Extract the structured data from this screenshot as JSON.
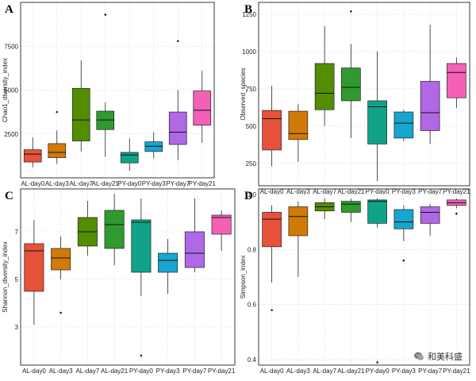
{
  "watermark": {
    "text": "和美科盛"
  },
  "chart_data": [
    {
      "type": "box",
      "panel": "A",
      "ylabel": "Chao1_diversity_index",
      "ylim": [
        0,
        10000
      ],
      "yticks": [
        2500,
        5000,
        7500
      ],
      "categories": [
        "AL-day0",
        "AL-day3",
        "AL-day7",
        "AL-day21",
        "PY-day0",
        "PY-day3",
        "PY-day7",
        "PY-day21"
      ],
      "colors": [
        "#e8513a",
        "#d27a08",
        "#538d02",
        "#2f9a2f",
        "#10a389",
        "#16a6cf",
        "#b068e6",
        "#f460b5"
      ],
      "grid": true,
      "boxes": [
        {
          "min": 600,
          "q1": 900,
          "median": 1350,
          "q3": 1600,
          "max": 2300,
          "outliers": []
        },
        {
          "min": 800,
          "q1": 1150,
          "median": 1450,
          "q3": 1950,
          "max": 2700,
          "outliers": [
            3750
          ]
        },
        {
          "min": 1500,
          "q1": 2100,
          "median": 3300,
          "q3": 5100,
          "max": 6700,
          "outliers": []
        },
        {
          "min": 1200,
          "q1": 2750,
          "median": 3300,
          "q3": 3800,
          "max": 4300,
          "outliers": [
            9300
          ]
        },
        {
          "min": 400,
          "q1": 850,
          "median": 1300,
          "q3": 1450,
          "max": 2250,
          "outliers": []
        },
        {
          "min": 1100,
          "q1": 1500,
          "median": 1800,
          "q3": 2050,
          "max": 2600,
          "outliers": []
        },
        {
          "min": 1000,
          "q1": 1900,
          "median": 2600,
          "q3": 3750,
          "max": 5000,
          "outliers": [
            7800
          ]
        },
        {
          "min": 2000,
          "q1": 3000,
          "median": 3850,
          "q3": 4950,
          "max": 6100,
          "outliers": []
        }
      ]
    },
    {
      "type": "box",
      "panel": "B",
      "ylabel": "Observed_species",
      "ylim": [
        100,
        1330
      ],
      "yticks": [
        250,
        500,
        750,
        1000,
        1250
      ],
      "categories": [
        "AL-day0",
        "AL-day3",
        "AL-day7",
        "AL-day21",
        "PY-day0",
        "PY-day3",
        "PY-day7",
        "PY-day21"
      ],
      "colors": [
        "#e8513a",
        "#d27a08",
        "#538d02",
        "#2f9a2f",
        "#10a389",
        "#16a6cf",
        "#b068e6",
        "#f460b5"
      ],
      "grid": true,
      "boxes": [
        {
          "min": 230,
          "q1": 340,
          "median": 550,
          "q3": 605,
          "max": 770,
          "outliers": []
        },
        {
          "min": 260,
          "q1": 410,
          "median": 450,
          "q3": 600,
          "max": 650,
          "outliers": []
        },
        {
          "min": 500,
          "q1": 610,
          "median": 720,
          "q3": 920,
          "max": 1170,
          "outliers": []
        },
        {
          "min": 420,
          "q1": 670,
          "median": 760,
          "q3": 890,
          "max": 1050,
          "outliers": [
            1270
          ]
        },
        {
          "min": 130,
          "q1": 380,
          "median": 630,
          "q3": 670,
          "max": 1000,
          "outliers": []
        },
        {
          "min": 400,
          "q1": 420,
          "median": 520,
          "q3": 595,
          "max": 610,
          "outliers": []
        },
        {
          "min": 380,
          "q1": 470,
          "median": 590,
          "q3": 800,
          "max": 1180,
          "outliers": []
        },
        {
          "min": 620,
          "q1": 690,
          "median": 860,
          "q3": 920,
          "max": 960,
          "outliers": []
        }
      ]
    },
    {
      "type": "box",
      "panel": "C",
      "ylabel": "Shannon_diversity_index",
      "ylim": [
        1.4,
        8.8
      ],
      "yticks": [
        3,
        5,
        7
      ],
      "categories": [
        "AL-day0",
        "AL-day3",
        "AL-day7",
        "AL-day21",
        "PY-day0",
        "PY-day3",
        "PY-day7",
        "PY-day21"
      ],
      "colors": [
        "#e8513a",
        "#d27a08",
        "#538d02",
        "#2f9a2f",
        "#10a389",
        "#16a6cf",
        "#b068e6",
        "#f460b5"
      ],
      "grid": true,
      "boxes": [
        {
          "min": 3.1,
          "q1": 4.5,
          "median": 6.2,
          "q3": 6.5,
          "max": 7.5,
          "outliers": []
        },
        {
          "min": 5.0,
          "q1": 5.4,
          "median": 5.9,
          "q3": 6.3,
          "max": 6.8,
          "outliers": [
            3.6
          ]
        },
        {
          "min": 6.0,
          "q1": 6.4,
          "median": 7.0,
          "q3": 7.6,
          "max": 8.3,
          "outliers": []
        },
        {
          "min": 5.6,
          "q1": 6.3,
          "median": 7.3,
          "q3": 7.9,
          "max": 8.6,
          "outliers": []
        },
        {
          "min": 4.3,
          "q1": 5.3,
          "median": 7.4,
          "q3": 7.5,
          "max": 8.4,
          "outliers": [
            1.8
          ]
        },
        {
          "min": 4.4,
          "q1": 5.3,
          "median": 5.8,
          "q3": 6.1,
          "max": 6.7,
          "outliers": []
        },
        {
          "min": 5.3,
          "q1": 5.5,
          "median": 6.1,
          "q3": 7.0,
          "max": 8.4,
          "outliers": []
        },
        {
          "min": 6.2,
          "q1": 6.9,
          "median": 7.6,
          "q3": 7.7,
          "max": 7.9,
          "outliers": []
        }
      ]
    },
    {
      "type": "box",
      "panel": "D",
      "ylabel": "Simpson_index",
      "ylim": [
        0.38,
        1.02
      ],
      "yticks": [
        0.4,
        0.6,
        0.8,
        1.0
      ],
      "categories": [
        "AL-day0",
        "AL-day3",
        "AL-day7",
        "AL-day21",
        "PY-day0",
        "PY-day3",
        "PY-day7",
        "PY-day21"
      ],
      "colors": [
        "#e8513a",
        "#d27a08",
        "#538d02",
        "#2f9a2f",
        "#10a389",
        "#16a6cf",
        "#b068e6",
        "#f460b5"
      ],
      "grid": true,
      "boxes": [
        {
          "min": 0.68,
          "q1": 0.81,
          "median": 0.91,
          "q3": 0.935,
          "max": 0.96,
          "outliers": [
            0.58
          ]
        },
        {
          "min": 0.7,
          "q1": 0.85,
          "median": 0.92,
          "q3": 0.955,
          "max": 0.975,
          "outliers": []
        },
        {
          "min": 0.91,
          "q1": 0.94,
          "median": 0.955,
          "q3": 0.97,
          "max": 0.985,
          "outliers": []
        },
        {
          "min": 0.9,
          "q1": 0.935,
          "median": 0.965,
          "q3": 0.975,
          "max": 0.985,
          "outliers": []
        },
        {
          "min": 0.88,
          "q1": 0.895,
          "median": 0.975,
          "q3": 0.98,
          "max": 0.985,
          "outliers": [
            0.39
          ]
        },
        {
          "min": 0.83,
          "q1": 0.875,
          "median": 0.9,
          "q3": 0.945,
          "max": 0.96,
          "outliers": [
            0.76
          ]
        },
        {
          "min": 0.85,
          "q1": 0.895,
          "median": 0.935,
          "q3": 0.955,
          "max": 0.965,
          "outliers": []
        },
        {
          "min": 0.95,
          "q1": 0.96,
          "median": 0.97,
          "q3": 0.98,
          "max": 0.985,
          "outliers": [
            0.93
          ]
        }
      ]
    }
  ]
}
